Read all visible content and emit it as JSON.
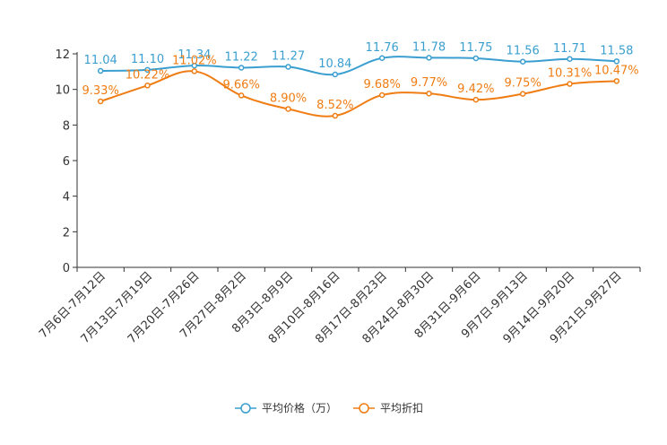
{
  "chart_data": {
    "type": "line",
    "title": "",
    "xlabel": "",
    "ylabel": "",
    "ylim": [
      0,
      12
    ],
    "yticks": [
      0,
      2,
      4,
      6,
      8,
      10,
      12
    ],
    "categories": [
      "7月6日-7月12日",
      "7月13日-7月19日",
      "7月20日-7月26日",
      "7月27日-8月2日",
      "8月3日-8月9日",
      "8月10日-8月16日",
      "8月17日-8月23日",
      "8月24日-8月30日",
      "8月31日-9月6日",
      "9月7日-9月13日",
      "9月14日-9月20日",
      "9月21日-9月27日"
    ],
    "series": [
      {
        "name": "平均价格（万）",
        "color": "#3a9fd0",
        "values": [
          11.04,
          11.1,
          11.34,
          11.22,
          11.27,
          10.84,
          11.76,
          11.78,
          11.75,
          11.56,
          11.71,
          11.58
        ],
        "labels": [
          "11.04",
          "11.10",
          "11.34",
          "11.22",
          "11.27",
          "10.84",
          "11.76",
          "11.78",
          "11.75",
          "11.56",
          "11.71",
          "11.58"
        ]
      },
      {
        "name": "平均折扣",
        "color": "#f07d14",
        "values": [
          9.33,
          10.22,
          11.02,
          9.66,
          8.9,
          8.52,
          9.68,
          9.77,
          9.42,
          9.75,
          10.31,
          10.47
        ],
        "labels": [
          "9.33%",
          "10.22%",
          "11.02%",
          "9.66%",
          "8.90%",
          "8.52%",
          "9.68%",
          "9.77%",
          "9.42%",
          "9.75%",
          "10.31%",
          "10.47%"
        ]
      }
    ],
    "legend_position": "bottom-center",
    "grid": false
  }
}
